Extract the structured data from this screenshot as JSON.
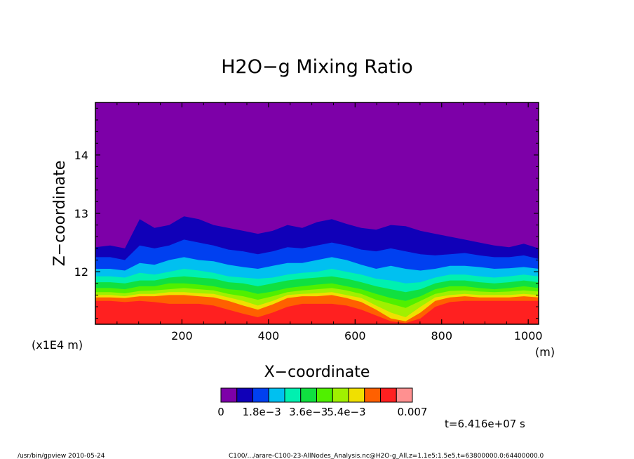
{
  "chart_data": {
    "type": "heatmap",
    "title": "H2O−g Mixing Ratio",
    "xlabel": "X−coordinate",
    "x_unit": "(m)",
    "ylabel": "Z−coordinate",
    "y_unit": "(x1E4 m)",
    "xlim": [
      0,
      1024
    ],
    "ylim": [
      11.1,
      14.9
    ],
    "x_ticks": [
      200,
      400,
      600,
      800,
      1000
    ],
    "x_tick_labels": [
      "200",
      "400",
      "600",
      "800",
      "1000"
    ],
    "y_ticks": [
      12,
      13,
      14
    ],
    "y_tick_labels": [
      "12",
      "13",
      "14"
    ],
    "colorbar": {
      "colors": [
        "#7d00a8",
        "#1000b8",
        "#0040f0",
        "#00c0f0",
        "#00f0b0",
        "#10e040",
        "#50f000",
        "#a0f000",
        "#f0e000",
        "#ff6000",
        "#ff2020",
        "#ff9090"
      ],
      "tick_labels": [
        "0",
        "1.8e−3",
        "3.6e−3",
        "5.4e−3",
        "0.007"
      ]
    },
    "time_label": "t=6.416e+07 s",
    "contour_levels": [
      {
        "level": 1,
        "color": "#1000b8",
        "z": [
          12.42,
          12.45,
          12.4,
          12.9,
          12.75,
          12.8,
          12.95,
          12.9,
          12.8,
          12.75,
          12.7,
          12.65,
          12.7,
          12.8,
          12.75,
          12.85,
          12.9,
          12.82,
          12.75,
          12.72,
          12.8,
          12.78,
          12.7,
          12.65,
          12.6,
          12.55,
          12.5,
          12.45,
          12.42,
          12.48,
          12.4
        ]
      },
      {
        "level": 2,
        "color": "#0040f0",
        "z": [
          12.25,
          12.25,
          12.2,
          12.45,
          12.4,
          12.45,
          12.55,
          12.5,
          12.45,
          12.38,
          12.35,
          12.3,
          12.35,
          12.42,
          12.4,
          12.45,
          12.5,
          12.45,
          12.38,
          12.35,
          12.4,
          12.35,
          12.3,
          12.28,
          12.3,
          12.32,
          12.28,
          12.25,
          12.25,
          12.28,
          12.22
        ]
      },
      {
        "level": 3,
        "color": "#00c0f0",
        "z": [
          12.05,
          12.05,
          12.02,
          12.15,
          12.12,
          12.2,
          12.25,
          12.2,
          12.18,
          12.12,
          12.08,
          12.05,
          12.1,
          12.15,
          12.15,
          12.2,
          12.25,
          12.2,
          12.12,
          12.05,
          12.1,
          12.05,
          12.02,
          12.05,
          12.1,
          12.1,
          12.08,
          12.05,
          12.06,
          12.08,
          12.05
        ]
      },
      {
        "level": 4,
        "color": "#00f0b0",
        "z": [
          11.92,
          11.92,
          11.9,
          11.98,
          11.95,
          12.0,
          12.05,
          12.02,
          11.98,
          11.92,
          11.9,
          11.88,
          11.9,
          11.95,
          11.98,
          12.0,
          12.05,
          12.0,
          11.95,
          11.88,
          11.85,
          11.8,
          11.82,
          11.9,
          11.95,
          11.95,
          11.92,
          11.9,
          11.92,
          11.95,
          11.92
        ]
      },
      {
        "level": 5,
        "color": "#10e040",
        "z": [
          11.82,
          11.82,
          11.8,
          11.85,
          11.85,
          11.9,
          11.92,
          11.9,
          11.88,
          11.82,
          11.8,
          11.75,
          11.8,
          11.85,
          11.88,
          11.9,
          11.92,
          11.88,
          11.82,
          11.75,
          11.7,
          11.65,
          11.7,
          11.8,
          11.85,
          11.85,
          11.82,
          11.8,
          11.82,
          11.85,
          11.82
        ]
      },
      {
        "level": 6,
        "color": "#50f000",
        "z": [
          11.72,
          11.72,
          11.7,
          11.75,
          11.75,
          11.8,
          11.8,
          11.78,
          11.75,
          11.7,
          11.68,
          11.62,
          11.66,
          11.72,
          11.75,
          11.78,
          11.8,
          11.75,
          11.7,
          11.62,
          11.55,
          11.5,
          11.58,
          11.7,
          11.75,
          11.75,
          11.72,
          11.7,
          11.72,
          11.75,
          11.72
        ]
      },
      {
        "level": 7,
        "color": "#a0f000",
        "z": [
          11.65,
          11.65,
          11.63,
          11.67,
          11.68,
          11.7,
          11.72,
          11.7,
          11.68,
          11.62,
          11.58,
          11.52,
          11.58,
          11.65,
          11.68,
          11.7,
          11.72,
          11.68,
          11.62,
          11.52,
          11.45,
          11.38,
          11.5,
          11.62,
          11.67,
          11.68,
          11.66,
          11.65,
          11.66,
          11.68,
          11.66
        ]
      },
      {
        "level": 8,
        "color": "#f0e000",
        "z": [
          11.6,
          11.6,
          11.58,
          11.62,
          11.62,
          11.65,
          11.65,
          11.63,
          11.62,
          11.56,
          11.5,
          11.42,
          11.5,
          11.6,
          11.62,
          11.63,
          11.65,
          11.6,
          11.55,
          11.42,
          11.3,
          11.22,
          11.4,
          11.56,
          11.6,
          11.62,
          11.6,
          11.6,
          11.6,
          11.62,
          11.6
        ]
      },
      {
        "level": 9,
        "color": "#ff6000",
        "z": [
          11.56,
          11.56,
          11.55,
          11.58,
          11.58,
          11.6,
          11.6,
          11.58,
          11.56,
          11.5,
          11.42,
          11.35,
          11.44,
          11.55,
          11.58,
          11.58,
          11.6,
          11.55,
          11.48,
          11.35,
          11.2,
          11.15,
          11.3,
          11.5,
          11.56,
          11.58,
          11.56,
          11.56,
          11.56,
          11.58,
          11.56
        ]
      },
      {
        "level": 10,
        "color": "#ff2020",
        "z": [
          11.5,
          11.5,
          11.48,
          11.5,
          11.48,
          11.45,
          11.45,
          11.45,
          11.42,
          11.35,
          11.28,
          11.22,
          11.3,
          11.4,
          11.45,
          11.45,
          11.45,
          11.42,
          11.35,
          11.25,
          11.15,
          11.12,
          11.2,
          11.4,
          11.48,
          11.5,
          11.5,
          11.5,
          11.5,
          11.5,
          11.5
        ]
      }
    ]
  },
  "footer": {
    "left": "/usr/bin/gpview   2010-05-24",
    "right": "C100/.../arare-C100-23-AllNodes_Analysis.nc@H2O-g_All,z=1.1e5:1.5e5,t=63800000.0:64400000.0"
  }
}
